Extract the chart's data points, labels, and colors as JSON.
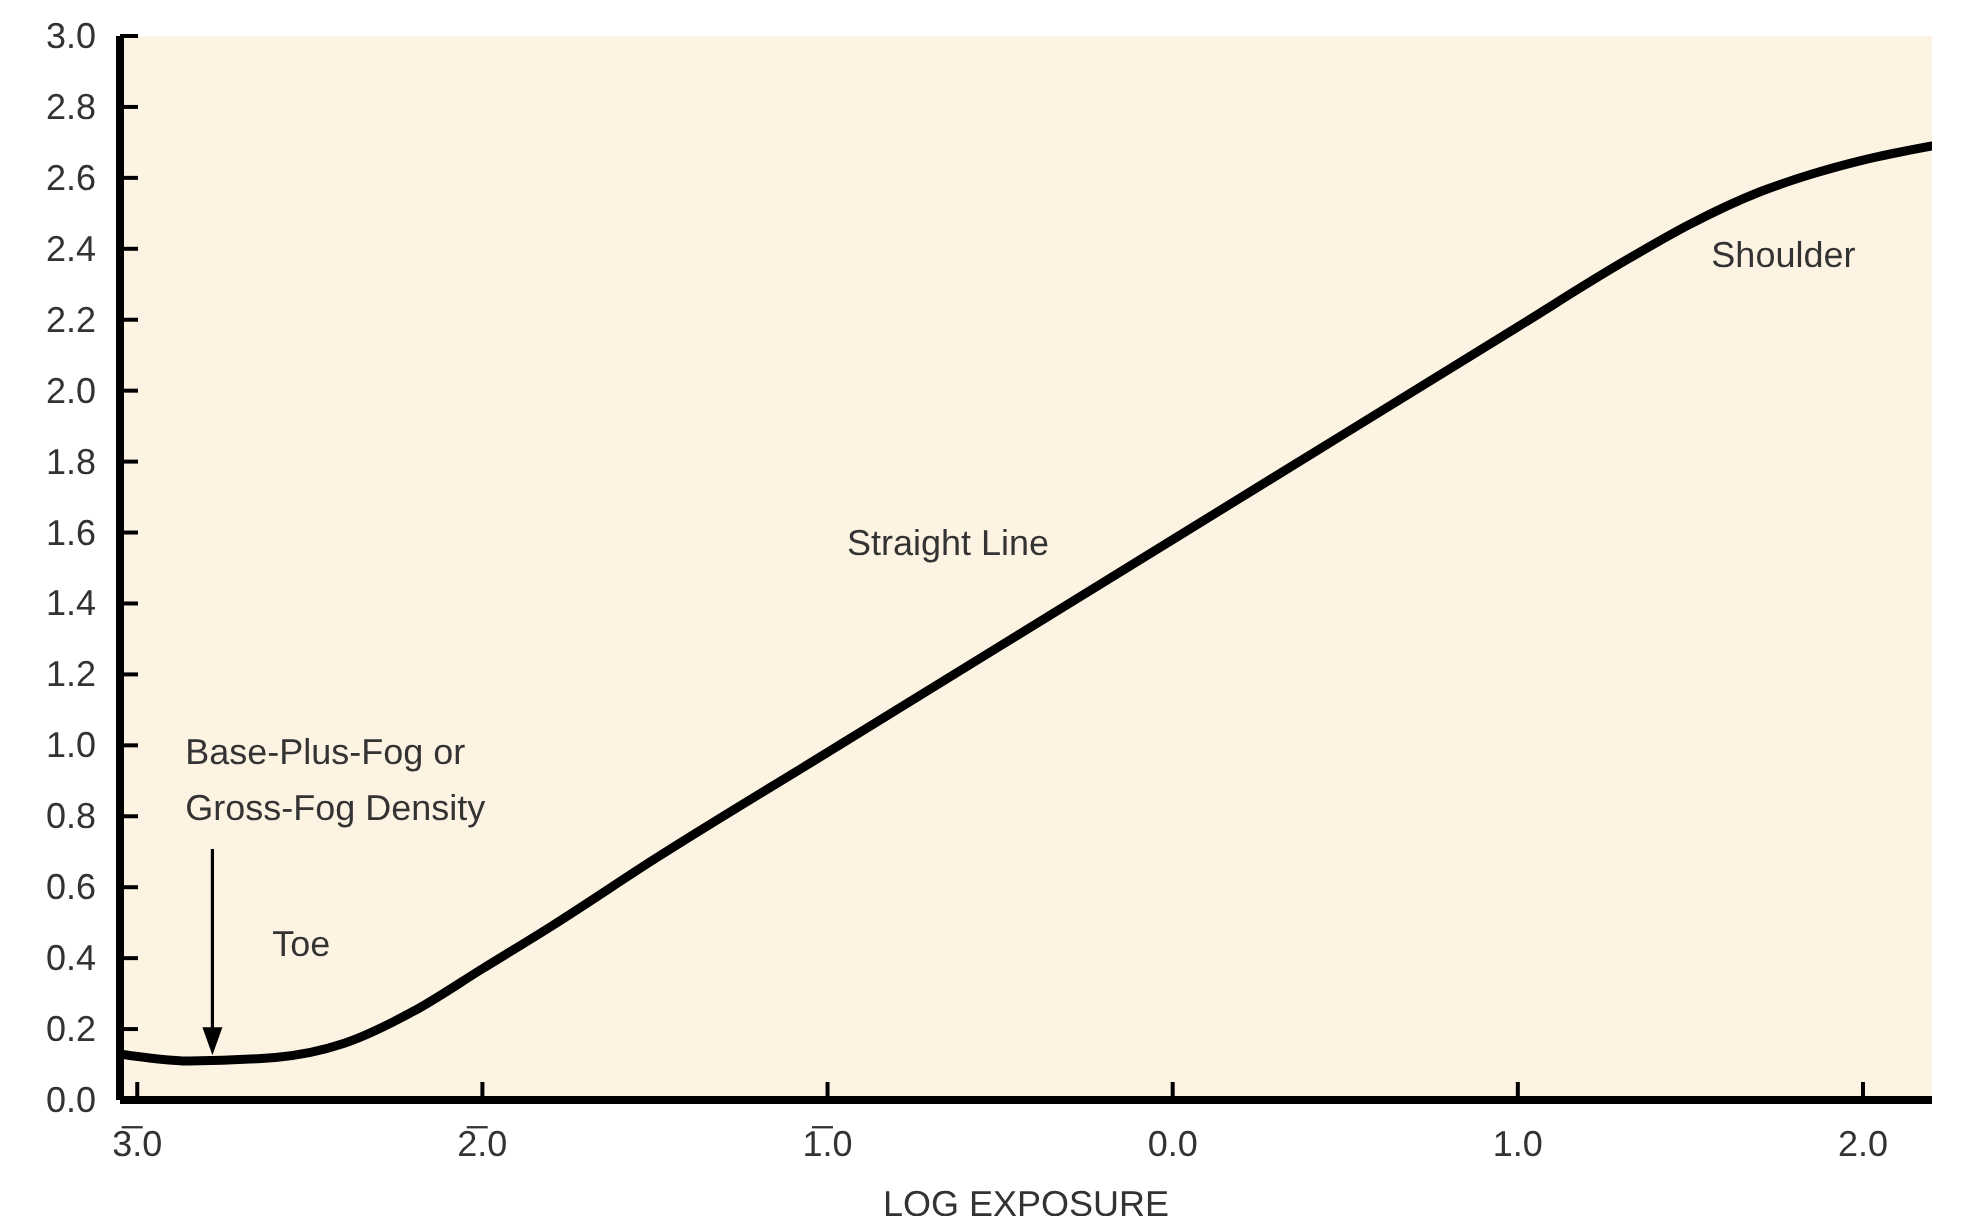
{
  "chart_data": {
    "type": "line",
    "xlabel": "LOG EXPOSURE",
    "x": [
      -3.05,
      -2.85,
      -2.6,
      -2.4,
      -2.2,
      -2.0,
      -1.8,
      -1.5,
      -1.0,
      -0.5,
      0.0,
      0.5,
      1.0,
      1.3,
      1.5,
      1.7,
      1.85,
      2.0,
      2.2
    ],
    "series": [
      {
        "color": "#000000",
        "values": [
          0.13,
          0.11,
          0.12,
          0.16,
          0.25,
          0.37,
          0.49,
          0.68,
          0.98,
          1.28,
          1.58,
          1.88,
          2.18,
          2.36,
          2.47,
          2.56,
          2.61,
          2.65,
          2.69
        ]
      }
    ],
    "xlim": [
      -3.05,
      2.2
    ],
    "xticks": [
      {
        "value": -3,
        "label": "3̅.0"
      },
      {
        "value": -2,
        "label": "2̅.0"
      },
      {
        "value": -1,
        "label": "1̅.0"
      },
      {
        "value": 0,
        "label": "0.0"
      },
      {
        "value": 1,
        "label": "1.0"
      },
      {
        "value": 2,
        "label": "2.0"
      }
    ],
    "ylim": [
      0,
      3
    ],
    "yticks": [
      {
        "value": 0,
        "label": "0.0"
      },
      {
        "value": 0.2,
        "label": "0.2"
      },
      {
        "value": 0.4,
        "label": "0.4"
      },
      {
        "value": 0.6,
        "label": "0.6"
      },
      {
        "value": 0.8,
        "label": "0.8"
      },
      {
        "value": 1,
        "label": "1.0"
      },
      {
        "value": 1.2,
        "label": "1.2"
      },
      {
        "value": 1.4,
        "label": "1.4"
      },
      {
        "value": 1.6,
        "label": "1.6"
      },
      {
        "value": 1.8,
        "label": "1.8"
      },
      {
        "value": 2,
        "label": "2.0"
      },
      {
        "value": 2.2,
        "label": "2.2"
      },
      {
        "value": 2.4,
        "label": "2.4"
      },
      {
        "value": 2.6,
        "label": "2.6"
      },
      {
        "value": 2.8,
        "label": "2.8"
      },
      {
        "value": 3,
        "label": "3.0"
      }
    ],
    "annotations": [
      "Base-Plus-Fog or Gross-Fog Density",
      "Toe",
      "Straight Line",
      "Shoulder"
    ],
    "grid": false,
    "legend": false,
    "marker": "none",
    "line_style": "solid"
  }
}
